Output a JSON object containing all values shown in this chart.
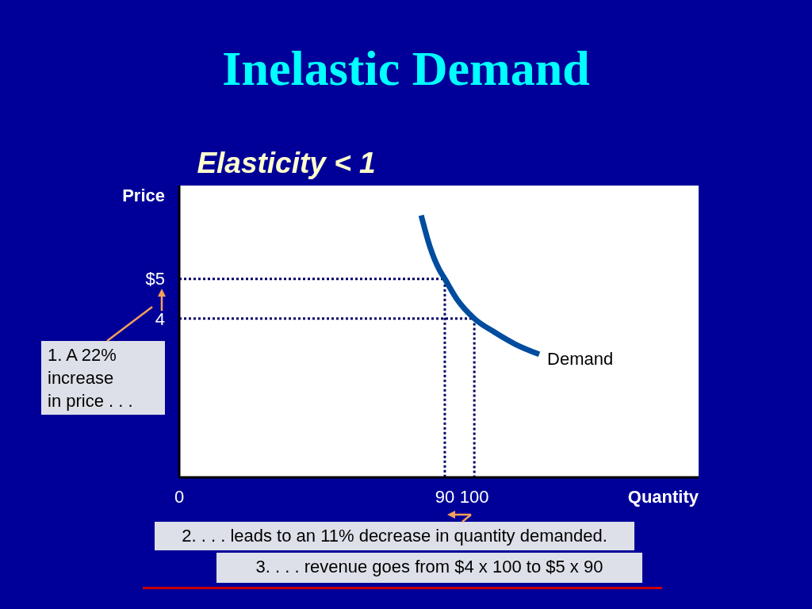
{
  "chart_data": {
    "type": "line",
    "title": "Inelastic Demand",
    "subtitle": "Elasticity < 1",
    "xlabel": "Quantity",
    "ylabel": "Price",
    "xlim": [
      0,
      176
    ],
    "ylim": [
      0,
      7.35
    ],
    "xticks": [
      0,
      90,
      100
    ],
    "yticks": [
      4,
      {
        "value": 5,
        "label": "$5"
      }
    ],
    "series": [
      {
        "color": "#000066",
        "line_style": "dotted",
        "x": [
          0,
          90,
          90
        ],
        "values": [
          5,
          5,
          0
        ]
      },
      {
        "color": "#000066",
        "line_style": "dotted",
        "x": [
          0,
          100,
          100
        ],
        "values": [
          4,
          4,
          0
        ]
      },
      {
        "name": "Demand",
        "color": "#004c9e",
        "x": [
          82,
          85,
          88,
          90,
          94,
          100,
          107,
          114,
          122
        ],
        "values": [
          6.6,
          5.8,
          5.25,
          5,
          4.5,
          4,
          3.65,
          3.35,
          3.1
        ]
      }
    ],
    "annotations": [
      "1. A 22%\nincrease\nin price . . .",
      "2. . . . leads to an 11% decrease in quantity demanded.",
      "3. . . . revenue goes from $4 x 100 to $5 x 90"
    ]
  }
}
